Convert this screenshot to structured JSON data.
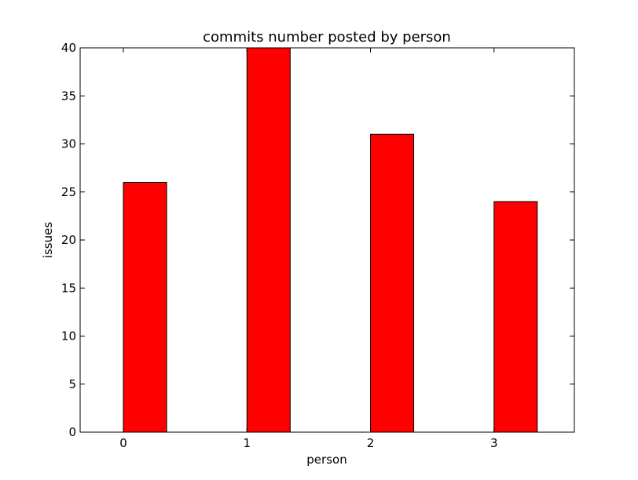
{
  "chart_data": {
    "type": "bar",
    "title": "commits number posted by person",
    "xlabel": "person",
    "ylabel": "issues",
    "categories": [
      "0",
      "1",
      "2",
      "3"
    ],
    "x": [
      0,
      1,
      2,
      3
    ],
    "values": [
      26,
      40,
      31,
      24
    ],
    "ylim": [
      0,
      40
    ],
    "xlim": [
      -0.35,
      3.65
    ],
    "yticks": [
      0,
      5,
      10,
      15,
      20,
      25,
      30,
      35,
      40
    ],
    "xticks": [
      0,
      1,
      2,
      3
    ],
    "grid": false,
    "bar_color": "#ff0000",
    "edge_color": "#000000"
  }
}
